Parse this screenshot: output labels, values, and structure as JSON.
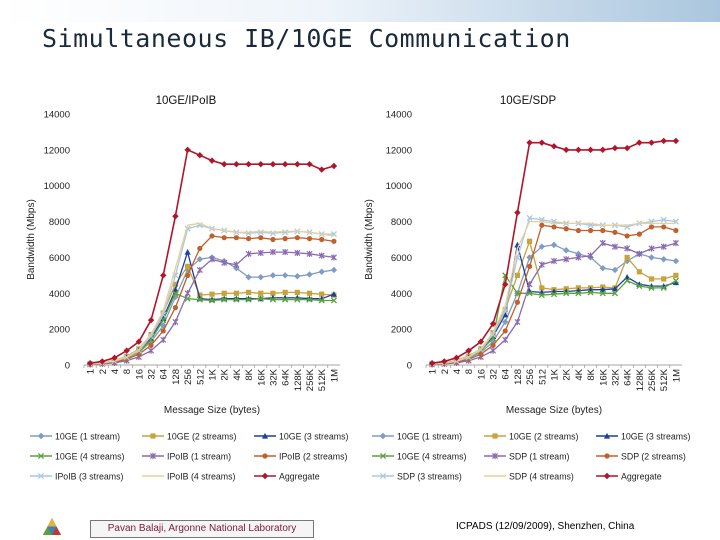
{
  "slide": {
    "title": "Simultaneous IB/10GE Communication",
    "footer_left": "Pavan Balaji, Argonne National Laboratory",
    "footer_right": "ICPADS (12/09/2009), Shenzhen, China"
  },
  "chart_data": [
    {
      "type": "line",
      "title": "10GE/IPoIB",
      "xlabel": "Message Size (bytes)",
      "ylabel": "Bandwidth (Mbps)",
      "ylim": [
        0,
        14000
      ],
      "yticks": [
        0,
        2000,
        4000,
        6000,
        8000,
        10000,
        12000,
        14000
      ],
      "grid": false,
      "legend": "bottom",
      "categories": [
        "1",
        "2",
        "4",
        "8",
        "16",
        "32",
        "64",
        "128",
        "256",
        "512",
        "1K",
        "2K",
        "4K",
        "8K",
        "16K",
        "32K",
        "64K",
        "128K",
        "256K",
        "512K",
        "1M"
      ],
      "series": [
        {
          "name": "10GE (1 stream)",
          "color": "#7f9cc2",
          "marker": "diamond",
          "values": [
            50,
            100,
            200,
            380,
            700,
            1300,
            2200,
            3800,
            5300,
            5900,
            6000,
            5800,
            5400,
            4900,
            4900,
            5000,
            5000,
            4950,
            5050,
            5200,
            5300
          ]
        },
        {
          "name": "10GE (2 streams)",
          "color": "#c8a23a",
          "marker": "square",
          "values": [
            60,
            120,
            250,
            480,
            900,
            1700,
            2900,
            4500,
            5500,
            3900,
            3950,
            4000,
            4000,
            4050,
            4000,
            4000,
            4050,
            4050,
            4000,
            3950,
            3900
          ]
        },
        {
          "name": "10GE (3 streams)",
          "color": "#1d3fa0",
          "marker": "triangle",
          "values": [
            50,
            110,
            220,
            420,
            800,
            1500,
            2600,
            4200,
            6300,
            3700,
            3650,
            3700,
            3700,
            3700,
            3700,
            3750,
            3750,
            3750,
            3700,
            3700,
            3950
          ]
        },
        {
          "name": "10GE (4 streams)",
          "color": "#5aa33a",
          "marker": "x",
          "values": [
            50,
            100,
            200,
            400,
            750,
            1400,
            2500,
            4000,
            3700,
            3650,
            3600,
            3650,
            3650,
            3650,
            3700,
            3650,
            3650,
            3650,
            3650,
            3600,
            3600
          ]
        },
        {
          "name": "IPoIB (1 stream)",
          "color": "#8a6ab0",
          "marker": "star",
          "values": [
            30,
            60,
            120,
            240,
            450,
            800,
            1400,
            2400,
            4000,
            5300,
            5900,
            5700,
            5600,
            6200,
            6250,
            6300,
            6300,
            6250,
            6200,
            6100,
            6000
          ]
        },
        {
          "name": "IPoIB (2 streams)",
          "color": "#c0602a",
          "marker": "circle",
          "values": [
            40,
            80,
            160,
            320,
            600,
            1100,
            1900,
            3200,
            5000,
            6500,
            7200,
            7100,
            7100,
            7050,
            7100,
            7000,
            7050,
            7100,
            7050,
            7000,
            6900
          ]
        },
        {
          "name": "IPoIB (3 streams)",
          "color": "#a9c9e6",
          "marker": "x",
          "values": [
            50,
            100,
            210,
            420,
            800,
            1600,
            2800,
            5000,
            7600,
            7800,
            7600,
            7500,
            7400,
            7350,
            7400,
            7350,
            7400,
            7450,
            7400,
            7300,
            7300
          ]
        },
        {
          "name": "IPoIB (4 streams)",
          "color": "#e9cf96",
          "marker": "none",
          "values": [
            55,
            110,
            230,
            450,
            850,
            1700,
            3000,
            5400,
            7800,
            7900,
            7600,
            7500,
            7400,
            7400,
            7450,
            7400,
            7450,
            7450,
            7400,
            7300,
            7200
          ]
        },
        {
          "name": "Aggregate",
          "color": "#b0152a",
          "marker": "diamond",
          "values": [
            100,
            200,
            400,
            800,
            1300,
            2500,
            5000,
            8300,
            12000,
            11700,
            11400,
            11200,
            11200,
            11200,
            11200,
            11200,
            11200,
            11200,
            11200,
            10900,
            11100
          ]
        }
      ]
    },
    {
      "type": "line",
      "title": "10GE/SDP",
      "xlabel": "Message Size (bytes)",
      "ylabel": "Bandwidth (Mbps)",
      "ylim": [
        0,
        14000
      ],
      "yticks": [
        0,
        2000,
        4000,
        6000,
        8000,
        10000,
        12000,
        14000
      ],
      "grid": false,
      "legend": "bottom",
      "categories": [
        "1",
        "2",
        "4",
        "8",
        "16",
        "32",
        "64",
        "128",
        "256",
        "512",
        "1K",
        "2K",
        "4K",
        "8K",
        "16K",
        "32K",
        "64K",
        "128K",
        "256K",
        "512K",
        "1M"
      ],
      "series": [
        {
          "name": "10GE (1 stream)",
          "color": "#7f9cc2",
          "marker": "diamond",
          "values": [
            50,
            100,
            200,
            380,
            700,
            1300,
            2400,
            4000,
            6000,
            6600,
            6700,
            6400,
            6200,
            6000,
            5400,
            5300,
            5800,
            6200,
            6000,
            5900,
            5800
          ]
        },
        {
          "name": "10GE (2 streams)",
          "color": "#c8a23a",
          "marker": "square",
          "values": [
            60,
            120,
            250,
            500,
            900,
            1800,
            3100,
            5000,
            6900,
            4300,
            4200,
            4250,
            4300,
            4300,
            4350,
            4300,
            6000,
            5200,
            4800,
            4800,
            5000
          ]
        },
        {
          "name": "10GE (3 streams)",
          "color": "#1d3fa0",
          "marker": "triangle",
          "values": [
            50,
            110,
            220,
            430,
            820,
            1600,
            2800,
            6700,
            4100,
            4050,
            4100,
            4100,
            4150,
            4200,
            4200,
            4250,
            4900,
            4500,
            4400,
            4400,
            4600
          ]
        },
        {
          "name": "10GE (4 streams)",
          "color": "#5aa33a",
          "marker": "x",
          "values": [
            50,
            100,
            200,
            400,
            800,
            1500,
            5000,
            4000,
            4000,
            3900,
            3950,
            4000,
            4000,
            4050,
            4000,
            4000,
            4700,
            4400,
            4300,
            4300,
            4700
          ]
        },
        {
          "name": "SDP (1 stream)",
          "color": "#8a6ab0",
          "marker": "star",
          "values": [
            30,
            60,
            120,
            240,
            450,
            800,
            1400,
            2400,
            4500,
            5600,
            5800,
            5900,
            6000,
            6100,
            6800,
            6600,
            6500,
            6200,
            6500,
            6600,
            6800
          ]
        },
        {
          "name": "SDP (2 streams)",
          "color": "#c0602a",
          "marker": "circle",
          "values": [
            40,
            80,
            160,
            320,
            600,
            1100,
            1900,
            3500,
            5500,
            7800,
            7700,
            7600,
            7500,
            7500,
            7500,
            7400,
            7200,
            7300,
            7700,
            7700,
            7500
          ]
        },
        {
          "name": "SDP (3 streams)",
          "color": "#a9c9e6",
          "marker": "x",
          "values": [
            50,
            100,
            210,
            420,
            850,
            1700,
            3000,
            6000,
            8200,
            8100,
            8000,
            7900,
            7900,
            7800,
            7800,
            7800,
            7700,
            7900,
            8000,
            8100,
            8000
          ]
        },
        {
          "name": "SDP (4 streams)",
          "color": "#e9cf96",
          "marker": "none",
          "values": [
            55,
            110,
            230,
            460,
            900,
            1800,
            3300,
            6500,
            8000,
            8000,
            7900,
            7900,
            7900,
            7900,
            7800,
            7800,
            7800,
            7900,
            7900,
            7900,
            7900
          ]
        },
        {
          "name": "Aggregate",
          "color": "#b0152a",
          "marker": "diamond",
          "values": [
            100,
            200,
            400,
            800,
            1300,
            2300,
            4500,
            8500,
            12400,
            12400,
            12200,
            12000,
            12000,
            12000,
            12000,
            12100,
            12100,
            12400,
            12400,
            12500,
            12500
          ]
        }
      ]
    }
  ]
}
